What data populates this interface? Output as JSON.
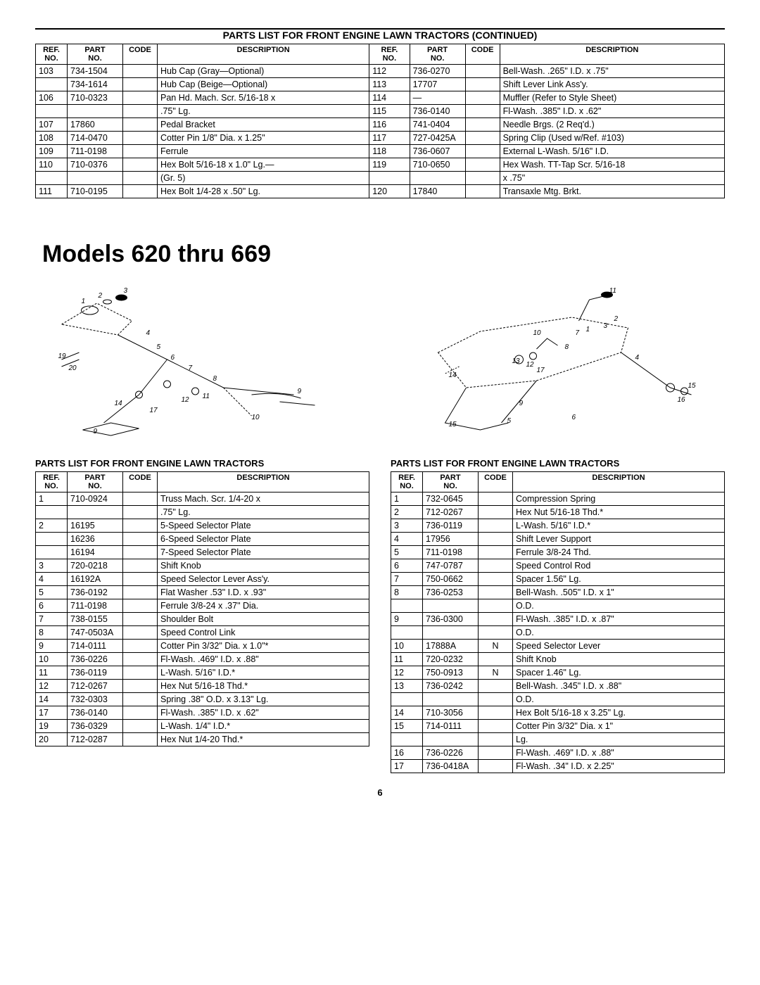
{
  "top_title": "PARTS LIST FOR FRONT ENGINE LAWN TRACTORS (CONTINUED)",
  "top_table": {
    "headers": [
      "REF.\nNO.",
      "PART\nNO.",
      "CODE",
      "DESCRIPTION",
      "REF.\nNO.",
      "PART\nNO.",
      "CODE",
      "DESCRIPTION"
    ],
    "rows": [
      [
        "103",
        "734-1504",
        "",
        "Hub Cap (Gray—Optional)",
        "112",
        "736-0270",
        "",
        "Bell-Wash. .265\" I.D. x .75\""
      ],
      [
        "",
        "734-1614",
        "",
        "Hub Cap (Beige—Optional)",
        "113",
        "17707",
        "",
        "Shift Lever Link Ass'y."
      ],
      [
        "106",
        "710-0323",
        "",
        "Pan Hd. Mach. Scr. 5/16-18 x",
        "114",
        "—",
        "",
        "Muffler (Refer to Style Sheet)"
      ],
      [
        "",
        "",
        "",
        ".75\" Lg.",
        "115",
        "736-0140",
        "",
        "Fl-Wash. .385\" I.D. x .62\""
      ],
      [
        "107",
        "17860",
        "",
        "Pedal Bracket",
        "116",
        "741-0404",
        "",
        "Needle Brgs. (2 Req'd.)"
      ],
      [
        "108",
        "714-0470",
        "",
        "Cotter Pin 1/8\" Dia. x 1.25\"",
        "117",
        "727-0425A",
        "",
        "Spring Clip (Used w/Ref. #103)"
      ],
      [
        "109",
        "711-0198",
        "",
        "Ferrule",
        "118",
        "736-0607",
        "",
        "External L-Wash. 5/16\" I.D."
      ],
      [
        "110",
        "710-0376",
        "",
        "Hex Bolt 5/16-18 x 1.0\" Lg.—",
        "119",
        "710-0650",
        "",
        "Hex Wash. TT-Tap Scr. 5/16-18"
      ],
      [
        "",
        "",
        "",
        "(Gr. 5)",
        "",
        "",
        "",
        "x .75\""
      ],
      [
        "111",
        "710-0195",
        "",
        "Hex Bolt 1/4-28 x .50\" Lg.",
        "120",
        "17840",
        "",
        "Transaxle Mtg. Brkt."
      ]
    ]
  },
  "main_heading": "Models 620 thru 669",
  "left_list_title": "PARTS LIST FOR FRONT ENGINE LAWN TRACTORS",
  "right_list_title": "PARTS LIST FOR FRONT ENGINE LAWN TRACTORS",
  "left_table": {
    "headers": [
      "REF.\nNO.",
      "PART\nNO.",
      "CODE",
      "DESCRIPTION"
    ],
    "rows": [
      [
        "1",
        "710-0924",
        "",
        "Truss Mach. Scr. 1/4-20 x"
      ],
      [
        "",
        "",
        "",
        ".75\" Lg."
      ],
      [
        "2",
        "16195",
        "",
        "5-Speed Selector Plate"
      ],
      [
        "",
        "16236",
        "",
        "6-Speed Selector Plate"
      ],
      [
        "",
        "16194",
        "",
        "7-Speed Selector Plate"
      ],
      [
        "3",
        "720-0218",
        "",
        "Shift Knob"
      ],
      [
        "4",
        "16192A",
        "",
        "Speed Selector Lever Ass'y."
      ],
      [
        "5",
        "736-0192",
        "",
        "Flat Washer .53\" I.D. x .93\""
      ],
      [
        "6",
        "711-0198",
        "",
        "Ferrule 3/8-24 x .37\" Dia."
      ],
      [
        "7",
        "738-0155",
        "",
        "Shoulder Bolt"
      ],
      [
        "8",
        "747-0503A",
        "",
        "Speed Control Link"
      ],
      [
        "9",
        "714-0111",
        "",
        "Cotter Pin 3/32\" Dia. x 1.0\"*"
      ],
      [
        "10",
        "736-0226",
        "",
        "Fl-Wash. .469\" I.D. x .88\""
      ],
      [
        "11",
        "736-0119",
        "",
        "L-Wash. 5/16\" I.D.*"
      ],
      [
        "12",
        "712-0267",
        "",
        "Hex Nut 5/16-18 Thd.*"
      ],
      [
        "14",
        "732-0303",
        "",
        "Spring .38\" O.D. x 3.13\" Lg."
      ],
      [
        "17",
        "736-0140",
        "",
        "Fl-Wash. .385\" I.D. x .62\""
      ],
      [
        "19",
        "736-0329",
        "",
        "L-Wash. 1/4\" I.D.*"
      ],
      [
        "20",
        "712-0287",
        "",
        "Hex Nut 1/4-20 Thd.*"
      ]
    ]
  },
  "right_table": {
    "headers": [
      "REF.\nNO.",
      "PART\nNO.",
      "CODE",
      "DESCRIPTION"
    ],
    "rows": [
      [
        "1",
        "732-0645",
        "",
        "Compression Spring"
      ],
      [
        "2",
        "712-0267",
        "",
        "Hex Nut 5/16-18 Thd.*"
      ],
      [
        "3",
        "736-0119",
        "",
        "L-Wash. 5/16\" I.D.*"
      ],
      [
        "4",
        "17956",
        "",
        "Shift Lever Support"
      ],
      [
        "5",
        "711-0198",
        "",
        "Ferrule 3/8-24 Thd."
      ],
      [
        "6",
        "747-0787",
        "",
        "Speed Control Rod"
      ],
      [
        "7",
        "750-0662",
        "",
        "Spacer 1.56\" Lg."
      ],
      [
        "8",
        "736-0253",
        "",
        "Bell-Wash. .505\" I.D. x 1\""
      ],
      [
        "",
        "",
        "",
        "O.D."
      ],
      [
        "9",
        "736-0300",
        "",
        "Fl-Wash. .385\" I.D. x .87\""
      ],
      [
        "",
        "",
        "",
        "O.D."
      ],
      [
        "10",
        "17888A",
        "N",
        "Speed Selector Lever"
      ],
      [
        "11",
        "720-0232",
        "",
        "Shift Knob"
      ],
      [
        "12",
        "750-0913",
        "N",
        "Spacer 1.46\" Lg."
      ],
      [
        "13",
        "736-0242",
        "",
        "Bell-Wash. .345\" I.D. x .88\""
      ],
      [
        "",
        "",
        "",
        "O.D."
      ],
      [
        "14",
        "710-3056",
        "",
        "Hex Bolt 5/16-18 x 3.25\" Lg."
      ],
      [
        "15",
        "714-0111",
        "",
        "Cotter Pin 3/32\" Dia. x 1\""
      ],
      [
        "",
        "",
        "",
        "Lg."
      ],
      [
        "16",
        "736-0226",
        "",
        "Fl-Wash. .469\" I.D. x .88\""
      ],
      [
        "17",
        "736-0418A",
        "",
        "Fl-Wash. .34\" I.D. x 2.25\""
      ]
    ]
  },
  "page_number": "6",
  "diagram_left_labels": [
    "1",
    "2",
    "3",
    "4",
    "5",
    "6",
    "7",
    "8",
    "9",
    "10",
    "11",
    "12",
    "14",
    "17",
    "19",
    "20"
  ],
  "diagram_right_labels": [
    "1",
    "2",
    "3",
    "4",
    "5",
    "6",
    "7",
    "8",
    "9",
    "10",
    "11",
    "12",
    "13",
    "14",
    "15",
    "16",
    "17"
  ]
}
